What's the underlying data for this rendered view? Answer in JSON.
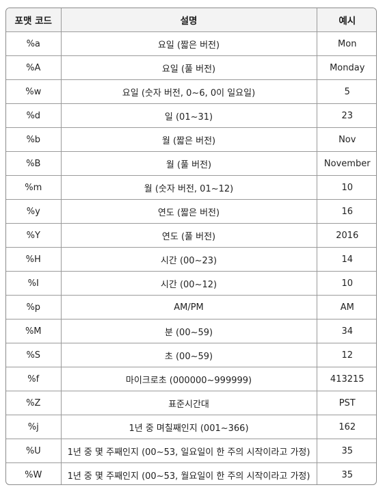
{
  "headers": [
    "포맷 코드",
    "설명",
    "예시"
  ],
  "rows": [
    {
      "code": "%a",
      "desc": "요일 (짧은 버전)",
      "example": "Mon"
    },
    {
      "code": "%A",
      "desc": "요일 (풀 버전)",
      "example": "Monday"
    },
    {
      "code": "%w",
      "desc": "요일 (숫자 버전, 0~6, 0이 일요일)",
      "example": "5"
    },
    {
      "code": "%d",
      "desc": "일 (01~31)",
      "example": "23"
    },
    {
      "code": "%b",
      "desc": "월 (짧은 버전)",
      "example": "Nov"
    },
    {
      "code": "%B",
      "desc": "월 (풀 버전)",
      "example": "November"
    },
    {
      "code": "%m",
      "desc": "월 (숫자 버전, 01~12)",
      "example": "10"
    },
    {
      "code": "%y",
      "desc": "연도 (짧은 버전)",
      "example": "16"
    },
    {
      "code": "%Y",
      "desc": "연도 (풀 버전)",
      "example": "2016"
    },
    {
      "code": "%H",
      "desc": "시간 (00~23)",
      "example": "14"
    },
    {
      "code": "%I",
      "desc": "시간 (00~12)",
      "example": "10"
    },
    {
      "code": "%p",
      "desc": "AM/PM",
      "example": "AM"
    },
    {
      "code": "%M",
      "desc": "분 (00~59)",
      "example": "34"
    },
    {
      "code": "%S",
      "desc": "초 (00~59)",
      "example": "12"
    },
    {
      "code": "%f",
      "desc": "마이크로초 (000000~999999)",
      "example": "413215"
    },
    {
      "code": "%Z",
      "desc": "표준시간대",
      "example": "PST"
    },
    {
      "code": "%j",
      "desc": "1년 중 며칠째인지 (001~366)",
      "example": "162"
    },
    {
      "code": "%U",
      "desc": "1년 중 몇 주째인지 (00~53, 일요일이 한 주의 시작이라고 가정)",
      "example": "35"
    },
    {
      "code": "%W",
      "desc": "1년 중 몇 주째인지 (00~53, 월요일이 한 주의 시작이라고 가정)",
      "example": "35"
    }
  ]
}
